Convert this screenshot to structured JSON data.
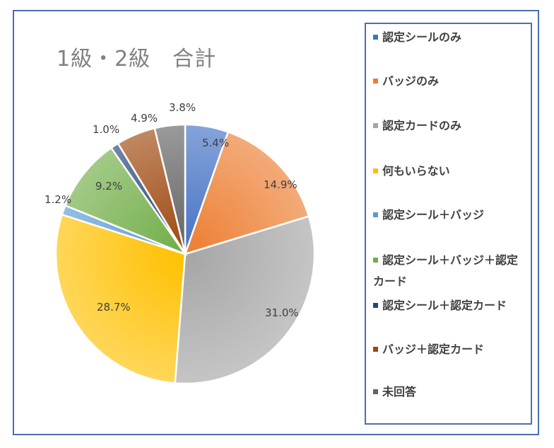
{
  "chart_data": {
    "type": "pie",
    "title": "1級・2級　合計",
    "legend_position": "right",
    "slices": [
      {
        "name": "認定シールのみ",
        "value": 5.4,
        "label": "5.4%",
        "color": "#4472c4"
      },
      {
        "name": "バッジのみ",
        "value": 14.9,
        "label": "14.9%",
        "color": "#ed7d31"
      },
      {
        "name": "認定カードのみ",
        "value": 31.0,
        "label": "31.0%",
        "color": "#a5a5a5"
      },
      {
        "name": "何もいらない",
        "value": 28.7,
        "label": "28.7%",
        "color": "#ffc000"
      },
      {
        "name": "認定シール＋バッジ",
        "value": 1.2,
        "label": "1.2%",
        "color": "#5b9bd5"
      },
      {
        "name": "認定シール＋バッジ＋認定カード",
        "value": 9.2,
        "label": "9.2%",
        "color": "#70ad47"
      },
      {
        "name": "認定シール＋認定カード",
        "value": 1.0,
        "label": "1.0%",
        "color": "#264478"
      },
      {
        "name": "バッジ＋認定カード",
        "value": 4.9,
        "label": "4.9%",
        "color": "#9e480e"
      },
      {
        "name": "未回答",
        "value": 3.8,
        "label": "3.8%",
        "color": "#636363"
      }
    ]
  }
}
